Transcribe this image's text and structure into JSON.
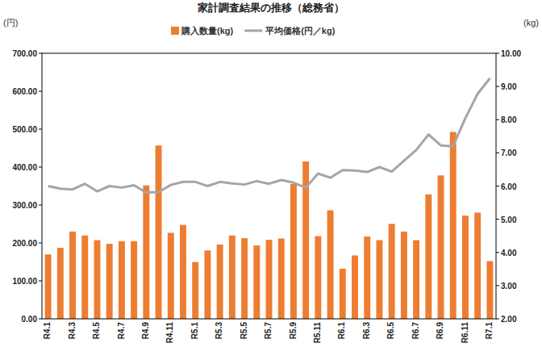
{
  "chart_data": {
    "type": "bar",
    "title": "家計調査結果の推移（総務省）",
    "ylabel": "(円)",
    "y2label": "(kg)",
    "categories": [
      "R4.1",
      null,
      "R4.3",
      null,
      "R4.5",
      null,
      "R4.7",
      null,
      "R4.9",
      null,
      "R4.11",
      null,
      "R5.1",
      null,
      "R5.3",
      null,
      "R5.5",
      null,
      "R5.7",
      null,
      "R5.9",
      null,
      "R5.11",
      null,
      "R6.1",
      null,
      "R6.3",
      null,
      "R6.5",
      null,
      "R6.7",
      null,
      "R6.9",
      null,
      "R6.11",
      null,
      "R7.1"
    ],
    "series": [
      {
        "name": "購入数量(kg)",
        "type": "bar",
        "axis": "y2",
        "color": "#ED7D31",
        "values": [
          3.94,
          4.14,
          4.63,
          4.51,
          4.37,
          4.26,
          4.34,
          4.34,
          6.02,
          7.22,
          4.59,
          4.83,
          3.71,
          4.06,
          4.24,
          4.51,
          4.43,
          4.21,
          4.38,
          4.42,
          6.06,
          6.74,
          4.49,
          5.27,
          3.51,
          3.91,
          4.48,
          4.37,
          4.86,
          4.63,
          4.37,
          5.75,
          6.32,
          7.63,
          5.11,
          5.2,
          3.74
        ]
      },
      {
        "name": "平均価格(円／kg)",
        "type": "line",
        "axis": "y",
        "color": "#A5A5A5",
        "values": [
          350,
          343,
          341,
          356,
          336,
          350,
          346,
          352,
          333,
          334,
          353,
          361,
          361,
          350,
          361,
          357,
          354,
          363,
          356,
          366,
          359,
          346,
          383,
          372,
          392,
          391,
          387,
          400,
          388,
          417,
          445,
          486,
          457,
          455,
          529,
          593,
          634
        ]
      }
    ],
    "ylim": [
      0,
      700
    ],
    "yticks": [
      {
        "value": 0,
        "label": "0.00"
      },
      {
        "value": 100,
        "label": "100.00"
      },
      {
        "value": 200,
        "label": "200.00"
      },
      {
        "value": 300,
        "label": "300.00"
      },
      {
        "value": 400,
        "label": "400.00"
      },
      {
        "value": 500,
        "label": "500.00"
      },
      {
        "value": 600,
        "label": "600.00"
      },
      {
        "value": 700,
        "label": "700.00"
      }
    ],
    "y2lim": [
      2,
      10
    ],
    "y2ticks": [
      {
        "value": 2,
        "label": "2.00"
      },
      {
        "value": 3,
        "label": "3.00"
      },
      {
        "value": 4,
        "label": "4.00"
      },
      {
        "value": 5,
        "label": "5.00"
      },
      {
        "value": 6,
        "label": "6.00"
      },
      {
        "value": 7,
        "label": "7.00"
      },
      {
        "value": 8,
        "label": "8.00"
      },
      {
        "value": 9,
        "label": "9.00"
      },
      {
        "value": 10,
        "label": "10.00"
      }
    ],
    "grid": false,
    "legend": "top"
  }
}
